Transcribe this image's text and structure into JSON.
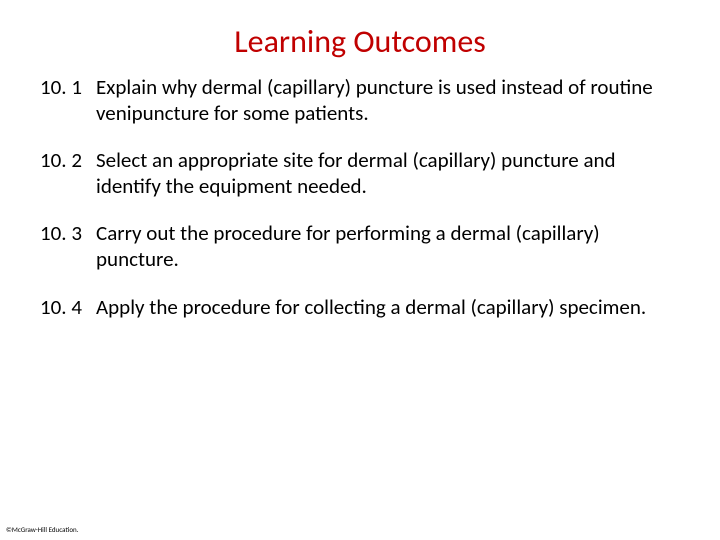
{
  "title": {
    "text": "Learning Outcomes",
    "color": "#c00000",
    "fontsize": 32
  },
  "body": {
    "color": "#000000",
    "fontsize": 21
  },
  "outcomes": [
    {
      "num": "10. 1",
      "text": "Explain why dermal (capillary) puncture is used instead of routine  venipuncture for some patients."
    },
    {
      "num": "10. 2",
      "text": "Select an appropriate site for dermal (capillary) puncture and identify the equipment needed."
    },
    {
      "num": "10. 3",
      "text": "Carry out the procedure for performing a dermal (capillary) puncture."
    },
    {
      "num": "10. 4",
      "text": "Apply the procedure for collecting a dermal (capillary) specimen."
    }
  ],
  "footer": {
    "text": "©McGraw-Hill Education."
  }
}
